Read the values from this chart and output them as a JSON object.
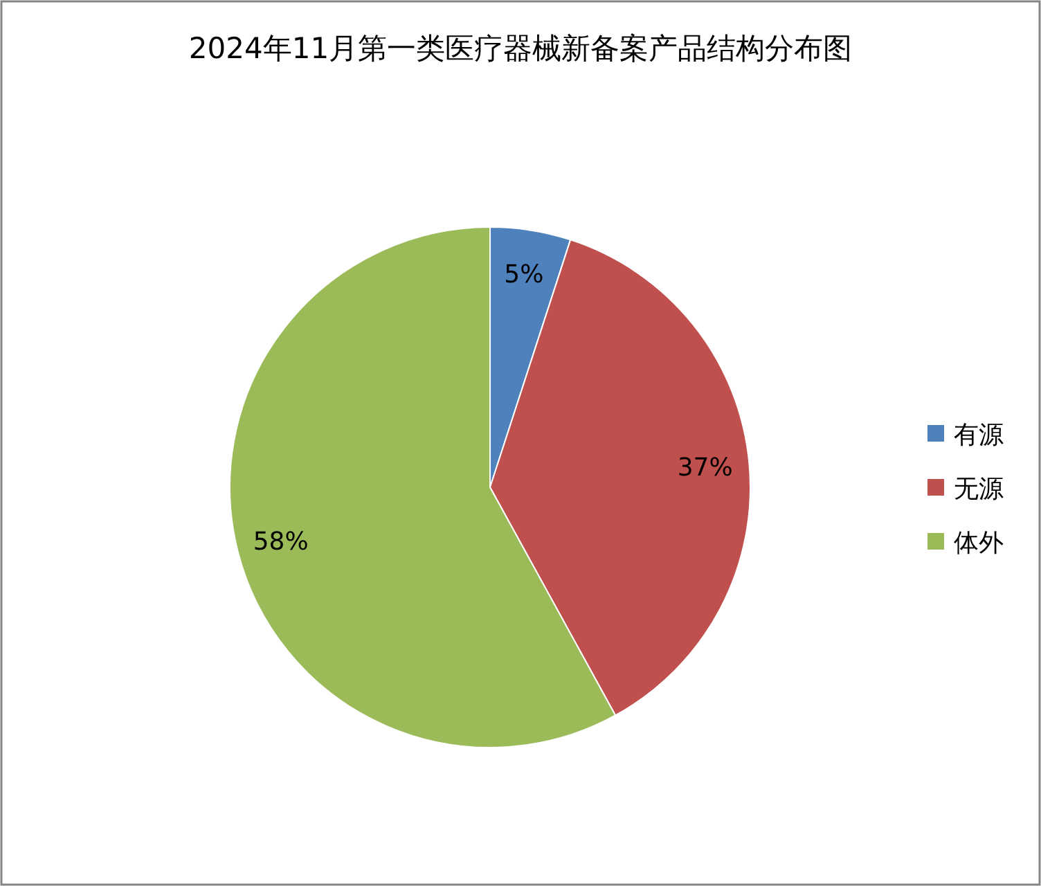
{
  "chart_data": {
    "type": "pie",
    "title": "2024年11月第一类医疗器械新备案产品结构分布图",
    "categories": [
      "有源",
      "无源",
      "体外"
    ],
    "values": [
      5,
      37,
      58
    ],
    "value_labels": [
      "5%",
      "37%",
      "58%"
    ],
    "colors": [
      "#4f81bd",
      "#c0504d",
      "#9bbb59"
    ],
    "legend": "right"
  }
}
